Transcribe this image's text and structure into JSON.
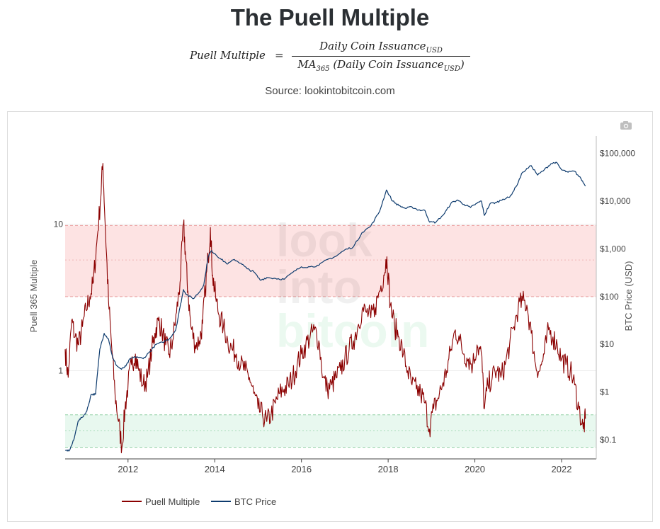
{
  "header": {
    "title": "The Puell Multiple",
    "formula_lhs": "Puell Multiple",
    "formula_eq": "=",
    "formula_numerator": "Daily Coin Issuance",
    "formula_numerator_sub": "USD",
    "formula_denominator_prefix": "MA",
    "formula_denominator_ma_sub": "365",
    "formula_denominator": "(Daily Coin Issuance",
    "formula_denominator_sub": "USD",
    "formula_denominator_close": ")",
    "source": "Source: lookintobitcoin.com"
  },
  "watermark": {
    "line1": "look",
    "line2": "into",
    "line3": "bitcoin"
  },
  "toolbar": {
    "camera_icon": "camera-icon"
  },
  "colors": {
    "puell": "#8b0000",
    "btc": "#0d3b6e",
    "red_band": "#fde3e3",
    "green_band": "#e8f8ef"
  },
  "chart_data": {
    "type": "line",
    "title": "The Puell Multiple",
    "xlabel": "",
    "ylabel_left": "Puell 365 Multiple",
    "ylabel_right": "BTC Price (USD)",
    "x_range": [
      2010.55,
      2022.8
    ],
    "y_left_scale": "log",
    "y_left_range": [
      0.25,
      40
    ],
    "y_right_scale": "log",
    "y_right_range": [
      0.04,
      230000
    ],
    "x_ticks": [
      {
        "value": 2012,
        "label": "2012"
      },
      {
        "value": 2014,
        "label": "2014"
      },
      {
        "value": 2016,
        "label": "2016"
      },
      {
        "value": 2018,
        "label": "2018"
      },
      {
        "value": 2020,
        "label": "2020"
      },
      {
        "value": 2022,
        "label": "2022"
      }
    ],
    "y_left_ticks": [
      {
        "value": 1,
        "label": "1"
      },
      {
        "value": 10,
        "label": "10"
      }
    ],
    "y_right_ticks": [
      {
        "value": 0.1,
        "label": "$0.1"
      },
      {
        "value": 1,
        "label": "$1"
      },
      {
        "value": 10,
        "label": "$10"
      },
      {
        "value": 100,
        "label": "$100"
      },
      {
        "value": 1000,
        "label": "$1,000"
      },
      {
        "value": 10000,
        "label": "$10,000"
      },
      {
        "value": 100000,
        "label": "$100,000"
      }
    ],
    "bands": [
      {
        "name": "overvalued",
        "axis": "left",
        "from": 3.2,
        "to": 9.8,
        "mid": 5.7
      },
      {
        "name": "undervalued",
        "axis": "left",
        "from": 0.3,
        "to": 0.5,
        "mid": 0.39
      }
    ],
    "legend": [
      "Puell Multiple",
      "BTC Price"
    ],
    "legend_position": "bottom-left",
    "series": [
      {
        "name": "Puell Multiple",
        "axis": "left",
        "x": [
          2010.55,
          2010.62,
          2010.7,
          2010.78,
          2010.86,
          2010.95,
          2011.03,
          2011.12,
          2011.2,
          2011.28,
          2011.36,
          2011.42,
          2011.48,
          2011.55,
          2011.62,
          2011.7,
          2011.78,
          2011.86,
          2011.93,
          2012.0,
          2012.08,
          2012.17,
          2012.25,
          2012.35,
          2012.45,
          2012.55,
          2012.62,
          2012.7,
          2012.78,
          2012.87,
          2012.95,
          2013.03,
          2013.12,
          2013.2,
          2013.28,
          2013.33,
          2013.38,
          2013.45,
          2013.55,
          2013.65,
          2013.72,
          2013.78,
          2013.85,
          2013.9,
          2013.95,
          2014.02,
          2014.1,
          2014.2,
          2014.3,
          2014.4,
          2014.5,
          2014.6,
          2014.7,
          2014.8,
          2014.9,
          2015.0,
          2015.1,
          2015.2,
          2015.3,
          2015.4,
          2015.5,
          2015.6,
          2015.7,
          2015.8,
          2015.9,
          2016.0,
          2016.1,
          2016.2,
          2016.3,
          2016.4,
          2016.5,
          2016.6,
          2016.7,
          2016.8,
          2016.9,
          2017.0,
          2017.1,
          2017.2,
          2017.3,
          2017.4,
          2017.5,
          2017.6,
          2017.7,
          2017.8,
          2017.9,
          2017.97,
          2018.05,
          2018.15,
          2018.25,
          2018.35,
          2018.45,
          2018.55,
          2018.65,
          2018.75,
          2018.85,
          2018.95,
          2019.05,
          2019.15,
          2019.25,
          2019.35,
          2019.45,
          2019.55,
          2019.65,
          2019.75,
          2019.85,
          2019.95,
          2020.05,
          2020.15,
          2020.22,
          2020.3,
          2020.4,
          2020.5,
          2020.6,
          2020.7,
          2020.8,
          2020.9,
          2021.0,
          2021.1,
          2021.2,
          2021.3,
          2021.4,
          2021.5,
          2021.6,
          2021.7,
          2021.8,
          2021.9,
          2022.0,
          2022.1,
          2022.2,
          2022.3,
          2022.4,
          2022.5,
          2022.55
        ],
        "values": [
          1.4,
          0.9,
          2.2,
          1.7,
          1.5,
          2.0,
          2.6,
          3.2,
          4.0,
          7.5,
          14.0,
          26.0,
          9.0,
          3.0,
          1.5,
          0.7,
          0.45,
          0.3,
          0.55,
          0.8,
          1.1,
          1.3,
          1.0,
          0.8,
          0.9,
          1.4,
          1.8,
          2.2,
          1.9,
          1.5,
          1.3,
          1.6,
          2.5,
          4.0,
          10.0,
          6.0,
          3.5,
          2.0,
          1.5,
          1.6,
          2.1,
          3.5,
          6.0,
          9.5,
          4.5,
          3.2,
          2.4,
          2.0,
          1.6,
          1.4,
          1.3,
          1.1,
          1.0,
          0.9,
          0.7,
          0.55,
          0.5,
          0.45,
          0.5,
          0.6,
          0.7,
          0.75,
          0.8,
          0.9,
          1.1,
          1.3,
          1.5,
          1.7,
          1.9,
          1.6,
          0.9,
          0.75,
          0.8,
          0.9,
          1.0,
          1.2,
          1.4,
          1.6,
          2.0,
          2.6,
          2.5,
          2.3,
          2.7,
          3.5,
          4.5,
          6.0,
          2.8,
          2.0,
          1.7,
          1.3,
          1.0,
          0.8,
          0.75,
          0.7,
          0.6,
          0.4,
          0.55,
          0.65,
          0.8,
          1.0,
          1.4,
          1.9,
          1.6,
          1.3,
          1.2,
          1.1,
          1.5,
          1.3,
          0.55,
          0.8,
          0.9,
          1.0,
          0.9,
          1.1,
          1.5,
          2.0,
          2.7,
          3.0,
          2.8,
          1.8,
          1.1,
          1.0,
          1.3,
          1.9,
          1.7,
          1.5,
          1.2,
          1.1,
          1.0,
          0.8,
          0.55,
          0.4,
          0.47
        ]
      },
      {
        "name": "BTC Price",
        "axis": "right",
        "x": [
          2010.55,
          2010.65,
          2010.75,
          2010.85,
          2010.95,
          2011.05,
          2011.15,
          2011.25,
          2011.35,
          2011.45,
          2011.55,
          2011.65,
          2011.75,
          2011.85,
          2011.95,
          2012.05,
          2012.2,
          2012.35,
          2012.5,
          2012.65,
          2012.8,
          2012.95,
          2013.1,
          2013.2,
          2013.28,
          2013.35,
          2013.5,
          2013.65,
          2013.75,
          2013.85,
          2013.92,
          2014.0,
          2014.15,
          2014.3,
          2014.45,
          2014.6,
          2014.75,
          2014.9,
          2015.05,
          2015.2,
          2015.4,
          2015.6,
          2015.8,
          2016.0,
          2016.2,
          2016.4,
          2016.6,
          2016.8,
          2017.0,
          2017.2,
          2017.4,
          2017.6,
          2017.8,
          2017.96,
          2018.1,
          2018.25,
          2018.4,
          2018.55,
          2018.7,
          2018.85,
          2018.96,
          2019.1,
          2019.3,
          2019.45,
          2019.6,
          2019.75,
          2019.9,
          2020.05,
          2020.15,
          2020.22,
          2020.35,
          2020.5,
          2020.65,
          2020.8,
          2020.95,
          2021.1,
          2021.3,
          2021.45,
          2021.6,
          2021.75,
          2021.87,
          2022.0,
          2022.15,
          2022.3,
          2022.45,
          2022.55
        ],
        "values": [
          0.06,
          0.06,
          0.1,
          0.25,
          0.3,
          0.4,
          0.9,
          0.9,
          8.0,
          17.0,
          13.0,
          5.0,
          3.5,
          3.0,
          3.5,
          5.0,
          5.5,
          5.0,
          7.0,
          10.0,
          11.0,
          13.0,
          20.0,
          60.0,
          140.0,
          110.0,
          90.0,
          125.0,
          180.0,
          700.0,
          900.0,
          800.0,
          600.0,
          480.0,
          600.0,
          500.0,
          380.0,
          330.0,
          220.0,
          250.0,
          240.0,
          230.0,
          320.0,
          420.0,
          420.0,
          450.0,
          600.0,
          700.0,
          950.0,
          1100.0,
          2200.0,
          3000.0,
          6000.0,
          17000.0,
          10000.0,
          8000.0,
          7000.0,
          7500.0,
          6500.0,
          6300.0,
          3600.0,
          3600.0,
          5500.0,
          9000.0,
          10500.0,
          8500.0,
          7300.0,
          9000.0,
          10000.0,
          5000.0,
          8800.0,
          9300.0,
          11000.0,
          12000.0,
          20000.0,
          40000.0,
          55000.0,
          35000.0,
          45000.0,
          60000.0,
          65000.0,
          45000.0,
          40000.0,
          42000.0,
          29000.0,
          20500.0
        ]
      }
    ]
  }
}
